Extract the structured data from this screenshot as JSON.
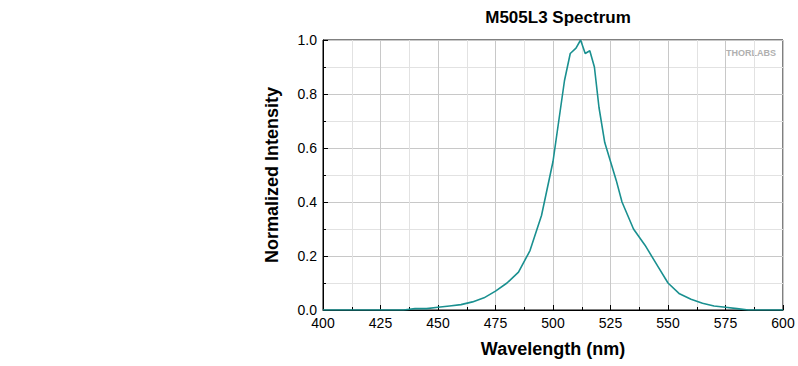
{
  "chart_data": {
    "type": "line",
    "title": "M505L3 Spectrum",
    "x_label": "Wavelength (nm)",
    "y_label": "Normalized Intensity",
    "annotations": [
      "THORLABS"
    ],
    "x": [
      400,
      405,
      410,
      415,
      420,
      425,
      430,
      435,
      440,
      445,
      450,
      455,
      460,
      465,
      470,
      475,
      480,
      485,
      490,
      495,
      500,
      502.5,
      505,
      507.5,
      510,
      512,
      514,
      516,
      518,
      520,
      522.5,
      525,
      527.5,
      530,
      535,
      540,
      545,
      550,
      555,
      560,
      565,
      570,
      575,
      580,
      585,
      590,
      595,
      600
    ],
    "series": [
      {
        "name": "M505L3",
        "color": "#1a9090",
        "values": [
          0.0,
          0.0,
          0.0,
          0.0,
          0.0,
          0.0,
          0.0,
          0.0,
          0.005,
          0.005,
          0.01,
          0.015,
          0.02,
          0.03,
          0.045,
          0.07,
          0.1,
          0.14,
          0.22,
          0.35,
          0.55,
          0.7,
          0.85,
          0.95,
          0.97,
          1.0,
          0.95,
          0.96,
          0.9,
          0.75,
          0.62,
          0.55,
          0.48,
          0.4,
          0.3,
          0.24,
          0.17,
          0.1,
          0.06,
          0.04,
          0.025,
          0.015,
          0.01,
          0.005,
          0.0,
          0.0,
          0.0,
          0.0
        ]
      }
    ],
    "xlim": [
      400,
      600
    ],
    "xticks": [
      400,
      425,
      450,
      475,
      500,
      525,
      550,
      575,
      600
    ],
    "ylim": [
      0,
      1
    ],
    "yticks": [
      {
        "value": 0,
        "label": "0.0"
      },
      {
        "value": 0.2,
        "label": "0.2"
      },
      {
        "value": 0.4,
        "label": "0.4"
      },
      {
        "value": 0.6,
        "label": "0.6"
      },
      {
        "value": 0.8,
        "label": "0.8"
      },
      {
        "value": 1,
        "label": "1.0"
      }
    ],
    "grid": true
  }
}
